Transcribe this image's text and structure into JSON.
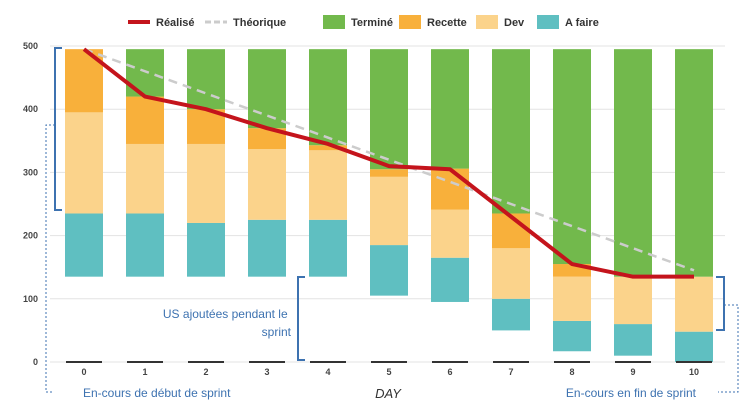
{
  "chart_data": {
    "type": "bar",
    "stacked": true,
    "xlabel": "DAY",
    "ylabel": "",
    "ylim": [
      0,
      500
    ],
    "y_ticks": [
      0,
      100,
      200,
      300,
      400,
      500
    ],
    "grid": true,
    "legend_position": "top",
    "categories": [
      "0",
      "1",
      "2",
      "3",
      "4",
      "5",
      "6",
      "7",
      "8",
      "9",
      "10"
    ],
    "base_values": [
      135,
      135,
      135,
      135,
      135,
      105,
      95,
      50,
      17,
      10,
      0
    ],
    "series": [
      {
        "name": "A faire",
        "color": "#5fbfc1",
        "values": [
          100,
          100,
          85,
          90,
          90,
          80,
          70,
          50,
          48,
          50,
          48
        ]
      },
      {
        "name": "Dev",
        "color": "#fbd38b",
        "values": [
          160,
          110,
          125,
          112,
          110,
          108,
          76,
          80,
          70,
          75,
          87
        ]
      },
      {
        "name": "Recette",
        "color": "#f8b03b",
        "values": [
          100,
          75,
          55,
          33,
          8,
          12,
          65,
          55,
          20,
          0,
          0
        ]
      },
      {
        "name": "Terminé",
        "color": "#72b94c",
        "values": [
          0,
          75,
          95,
          125,
          152,
          190,
          189,
          260,
          340,
          360,
          360
        ]
      }
    ],
    "lines": [
      {
        "name": "Réalisé",
        "color": "#c4141c",
        "style": "solid",
        "x": [
          0,
          1,
          2,
          3,
          4,
          5,
          6,
          7,
          8,
          9,
          10
        ],
        "values": [
          495,
          420,
          400,
          370,
          345,
          310,
          305,
          230,
          155,
          135,
          135
        ]
      },
      {
        "name": "Théorique",
        "color": "#cccccc",
        "style": "dashed",
        "x": [
          0,
          10
        ],
        "values": [
          495,
          145
        ]
      }
    ],
    "legend": [
      "Réalisé",
      "Théorique",
      "Terminé",
      "Recette",
      "Dev",
      "A faire"
    ],
    "annotations": [
      {
        "text": "En-cours de début de sprint",
        "color": "#3d72b0"
      },
      {
        "text": "US ajoutées pendant le sprint",
        "color": "#3d72b0"
      },
      {
        "text": "En-cours en fin de sprint",
        "color": "#3d72b0"
      }
    ]
  }
}
